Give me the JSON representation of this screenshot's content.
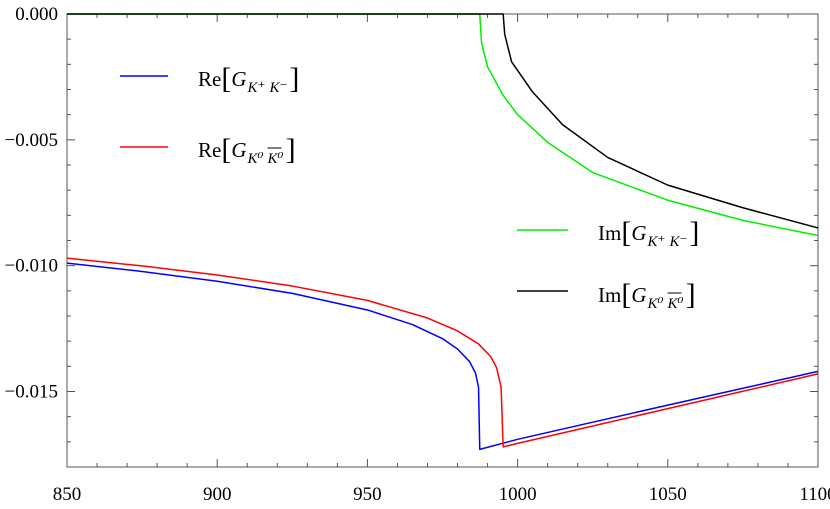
{
  "chart_data": {
    "type": "line",
    "title": "",
    "xlabel": "",
    "ylabel": "",
    "xlim": [
      850,
      1100
    ],
    "ylim": [
      -0.018,
      0.0
    ],
    "x_ticks": [
      850,
      900,
      950,
      1000,
      1050,
      1100
    ],
    "x_tick_labels": [
      "850",
      "900",
      "950",
      "1000",
      "1050",
      "1100"
    ],
    "y_ticks": [
      0.0,
      -0.005,
      -0.01,
      -0.015
    ],
    "y_tick_labels": [
      "0.000",
      "−0.005",
      "−0.010",
      "−0.015"
    ],
    "grid": false,
    "thresholds": [
      987.4,
      995.2
    ],
    "series": [
      {
        "name": "Re[G_{K+K-}]",
        "color": "#0000ff",
        "points": [
          [
            850,
            -0.0099
          ],
          [
            875,
            -0.01023
          ],
          [
            900,
            -0.01062
          ],
          [
            925,
            -0.0111
          ],
          [
            950,
            -0.01176
          ],
          [
            965,
            -0.01234
          ],
          [
            975,
            -0.0129
          ],
          [
            980,
            -0.01331
          ],
          [
            984,
            -0.01381
          ],
          [
            986,
            -0.01427
          ],
          [
            987,
            -0.01484
          ],
          [
            987.4,
            -0.0173
          ],
          [
            1000,
            -0.0169
          ],
          [
            1025,
            -0.01622
          ],
          [
            1050,
            -0.01554
          ],
          [
            1075,
            -0.01487
          ],
          [
            1100,
            -0.0142
          ]
        ]
      },
      {
        "name": "Re[G_{K0 K0bar}]",
        "color": "#ff0000",
        "points": [
          [
            850,
            -0.0097
          ],
          [
            875,
            -0.01001
          ],
          [
            900,
            -0.01037
          ],
          [
            925,
            -0.01081
          ],
          [
            950,
            -0.01138
          ],
          [
            970,
            -0.01208
          ],
          [
            980,
            -0.01259
          ],
          [
            987,
            -0.01311
          ],
          [
            991,
            -0.01361
          ],
          [
            993,
            -0.01405
          ],
          [
            994.5,
            -0.01482
          ],
          [
            995.2,
            -0.0172
          ],
          [
            1000,
            -0.01706
          ],
          [
            1025,
            -0.01637
          ],
          [
            1050,
            -0.01568
          ],
          [
            1075,
            -0.01499
          ],
          [
            1100,
            -0.0143
          ]
        ]
      },
      {
        "name": "Im[G_{K+K-}]",
        "color": "#00ee00",
        "points": [
          [
            850,
            0.0
          ],
          [
            987.4,
            0.0
          ],
          [
            988,
            -0.00115
          ],
          [
            990,
            -0.0021
          ],
          [
            995,
            -0.0032
          ],
          [
            1000,
            -0.004
          ],
          [
            1010,
            -0.0051
          ],
          [
            1025,
            -0.0063
          ],
          [
            1050,
            -0.0074
          ],
          [
            1075,
            -0.0082
          ],
          [
            1100,
            -0.0088
          ]
        ]
      },
      {
        "name": "Im[G_{K0 K0bar}]",
        "color": "#000000",
        "points": [
          [
            850,
            0.0
          ],
          [
            995.2,
            0.0
          ],
          [
            995.7,
            -0.0008
          ],
          [
            998,
            -0.0019
          ],
          [
            1005,
            -0.0031
          ],
          [
            1015,
            -0.0044
          ],
          [
            1030,
            -0.0057
          ],
          [
            1050,
            -0.0068
          ],
          [
            1075,
            -0.0077
          ],
          [
            1100,
            -0.0085
          ]
        ]
      }
    ],
    "legend": {
      "items": [
        {
          "prefix": "Re",
          "sub_main": "K⁺",
          "sub_second": "K⁻",
          "bar": false,
          "color": "#0000ff"
        },
        {
          "prefix": "Re",
          "sub_main": "K⁰",
          "sub_second": "K⁰",
          "bar": true,
          "color": "#ff0000"
        },
        {
          "prefix": "Im",
          "sub_main": "K⁺",
          "sub_second": "K⁻",
          "bar": false,
          "color": "#00ee00"
        },
        {
          "prefix": "Im",
          "sub_main": "K⁰",
          "sub_second": "K⁰",
          "bar": true,
          "color": "#000000"
        }
      ],
      "symbol": "G"
    }
  }
}
